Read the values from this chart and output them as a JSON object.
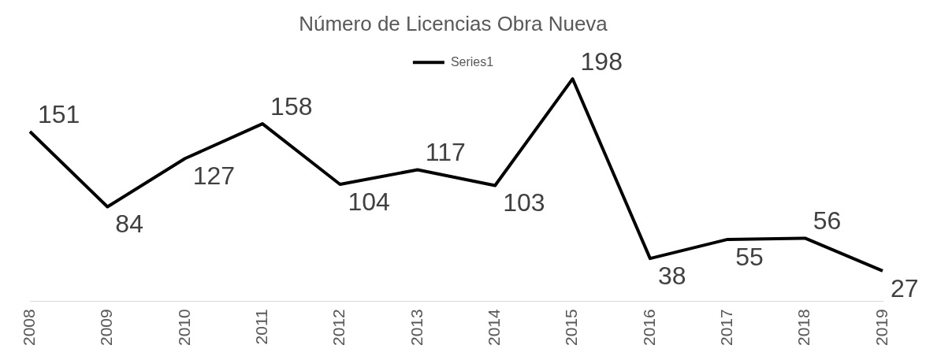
{
  "chart_data": {
    "type": "line",
    "title": "Número de Licencias Obra Nueva",
    "categories": [
      "2008",
      "2009",
      "2010",
      "2011",
      "2012",
      "2013",
      "2014",
      "2015",
      "2016",
      "2017",
      "2018",
      "2019"
    ],
    "series": [
      {
        "name": "Series1",
        "color": "#000000",
        "values": [
          151,
          84,
          127,
          158,
          104,
          117,
          103,
          198,
          38,
          55,
          56,
          27
        ]
      }
    ],
    "data_labels": true,
    "legend": "top",
    "grid": false,
    "marker": "none",
    "tick_labels": "x"
  }
}
